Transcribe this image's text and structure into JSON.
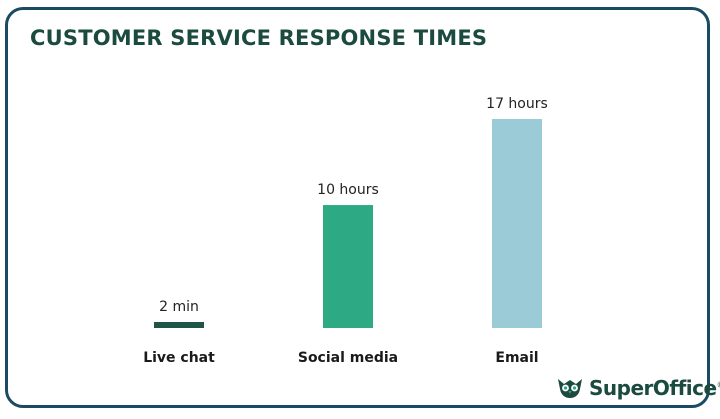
{
  "chart_data": {
    "type": "bar",
    "title": "CUSTOMER SERVICE RESPONSE TIMES",
    "categories": [
      "Live chat",
      "Social media",
      "Email"
    ],
    "values": [
      2,
      600,
      1020
    ],
    "value_unit": "minutes",
    "value_labels": [
      "2 min",
      "10 hours",
      "17 hours"
    ],
    "bar_colors": [
      "#1f5446",
      "#2da984",
      "#9bcbd7"
    ],
    "xlabel": "",
    "ylabel": "",
    "ylim": [
      0,
      1020
    ],
    "grid": false,
    "legend": "none"
  },
  "brand": {
    "name": "SuperOffice",
    "reg_mark": "®",
    "color": "#1b4a3f",
    "logo_icon": "owl-icon"
  },
  "frame": {
    "border_color": "#1b4b63"
  }
}
